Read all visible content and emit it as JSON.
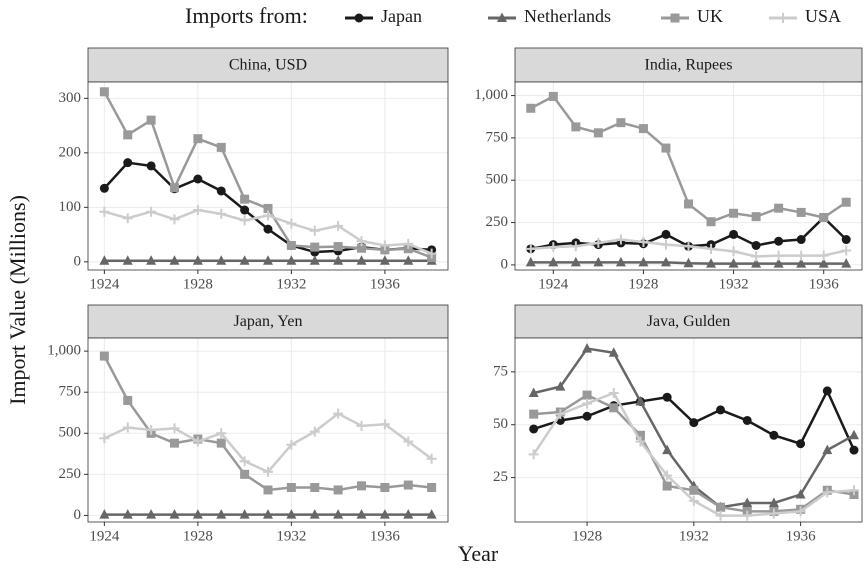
{
  "legend_title": "Imports from:",
  "x_label": "Year",
  "y_label": "Import Value (Millions)",
  "chart_data": [
    {
      "type": "line",
      "title": "China, USD",
      "x": [
        1924,
        1925,
        1926,
        1927,
        1928,
        1929,
        1930,
        1931,
        1932,
        1933,
        1934,
        1935,
        1936,
        1937,
        1938
      ],
      "xlim": [
        1923.3,
        1938.7
      ],
      "xticks": [
        1924,
        1928,
        1932,
        1936
      ],
      "ylim": [
        -15,
        330
      ],
      "yticks": [
        0,
        100,
        200,
        300
      ],
      "grid": true,
      "series": [
        {
          "name": "Japan",
          "color": "#1a1a1a",
          "shape": "circle",
          "values": [
            135,
            182,
            176,
            134,
            152,
            130,
            95,
            60,
            30,
            18,
            20,
            27,
            22,
            25,
            22
          ]
        },
        {
          "name": "Netherlands",
          "color": "#666666",
          "shape": "triangle",
          "values": [
            2,
            2,
            2,
            2,
            2,
            2,
            2,
            2,
            2,
            2,
            2,
            2,
            2,
            2,
            2
          ]
        },
        {
          "name": "UK",
          "color": "#999999",
          "shape": "square",
          "values": [
            312,
            233,
            260,
            136,
            226,
            210,
            115,
            98,
            30,
            27,
            28,
            25,
            22,
            24,
            8
          ]
        },
        {
          "name": "USA",
          "color": "#cccccc",
          "shape": "plus",
          "values": [
            92,
            80,
            92,
            78,
            95,
            88,
            76,
            85,
            70,
            57,
            66,
            38,
            30,
            33,
            15
          ]
        }
      ]
    },
    {
      "type": "line",
      "title": "India, Rupees",
      "x": [
        1923,
        1924,
        1925,
        1926,
        1927,
        1928,
        1929,
        1930,
        1931,
        1932,
        1933,
        1934,
        1935,
        1936,
        1937
      ],
      "xlim": [
        1922.3,
        1937.7
      ],
      "xticks": [
        1924,
        1928,
        1932,
        1936
      ],
      "ylim": [
        -30,
        1080
      ],
      "yticks": [
        0,
        250,
        500,
        750,
        {
          "value": 1000,
          "label": "1,000"
        }
      ],
      "grid": true,
      "series": [
        {
          "name": "Japan",
          "color": "#1a1a1a",
          "shape": "circle",
          "values": [
            95,
            120,
            130,
            120,
            130,
            125,
            180,
            110,
            120,
            180,
            115,
            140,
            150,
            280,
            150
          ]
        },
        {
          "name": "Netherlands",
          "color": "#666666",
          "shape": "triangle",
          "values": [
            15,
            15,
            15,
            15,
            15,
            15,
            15,
            10,
            8,
            8,
            8,
            8,
            8,
            8,
            8
          ]
        },
        {
          "name": "UK",
          "color": "#999999",
          "shape": "square",
          "values": [
            925,
            995,
            815,
            780,
            840,
            805,
            690,
            360,
            255,
            305,
            285,
            335,
            310,
            280,
            370
          ]
        },
        {
          "name": "USA",
          "color": "#cccccc",
          "shape": "plus",
          "values": [
            95,
            105,
            110,
            130,
            150,
            135,
            120,
            110,
            95,
            80,
            50,
            55,
            55,
            55,
            85
          ]
        }
      ]
    },
    {
      "type": "line",
      "title": "Japan, Yen",
      "x": [
        1924,
        1925,
        1926,
        1927,
        1928,
        1929,
        1930,
        1931,
        1932,
        1933,
        1934,
        1935,
        1936,
        1937,
        1938
      ],
      "xlim": [
        1923.3,
        1938.7
      ],
      "xticks": [
        1924,
        1928,
        1932,
        1936
      ],
      "ylim": [
        -40,
        1080
      ],
      "yticks": [
        0,
        250,
        500,
        750,
        {
          "value": 1000,
          "label": "1,000"
        }
      ],
      "grid": true,
      "series": [
        {
          "name": "Netherlands",
          "color": "#666666",
          "shape": "triangle",
          "values": [
            5,
            5,
            5,
            5,
            5,
            5,
            5,
            5,
            5,
            5,
            5,
            5,
            5,
            5,
            5
          ]
        },
        {
          "name": "UK",
          "color": "#999999",
          "shape": "square",
          "values": [
            970,
            700,
            500,
            440,
            465,
            440,
            250,
            155,
            170,
            170,
            155,
            180,
            170,
            185,
            170
          ]
        },
        {
          "name": "USA",
          "color": "#cccccc",
          "shape": "plus",
          "values": [
            470,
            535,
            520,
            530,
            450,
            500,
            330,
            265,
            430,
            510,
            620,
            545,
            555,
            450,
            345
          ]
        }
      ]
    },
    {
      "type": "line",
      "title": "Java, Gulden",
      "x": [
        1926,
        1927,
        1928,
        1929,
        1930,
        1931,
        1932,
        1933,
        1934,
        1935,
        1936,
        1937,
        1938
      ],
      "xlim": [
        1925.3,
        1938.3
      ],
      "xticks": [
        1928,
        1932,
        1936
      ],
      "ylim": [
        4,
        91
      ],
      "yticks": [
        25,
        50,
        75
      ],
      "grid": true,
      "series": [
        {
          "name": "Japan",
          "color": "#1a1a1a",
          "shape": "circle",
          "values": [
            48,
            52,
            54,
            59,
            61,
            63,
            51,
            57,
            52,
            45,
            41,
            66,
            38
          ]
        },
        {
          "name": "Netherlands",
          "color": "#666666",
          "shape": "triangle",
          "values": [
            65,
            68,
            86,
            84,
            61,
            38,
            21,
            11,
            13,
            13,
            17,
            38,
            45
          ]
        },
        {
          "name": "UK",
          "color": "#999999",
          "shape": "square",
          "values": [
            55,
            56,
            64,
            58,
            45,
            21,
            19,
            11,
            9,
            9,
            10,
            19,
            17
          ]
        },
        {
          "name": "USA",
          "color": "#cccccc",
          "shape": "plus",
          "values": [
            36,
            55,
            60,
            65,
            42,
            26,
            14,
            7,
            7,
            8,
            9,
            18,
            19
          ]
        }
      ]
    }
  ]
}
